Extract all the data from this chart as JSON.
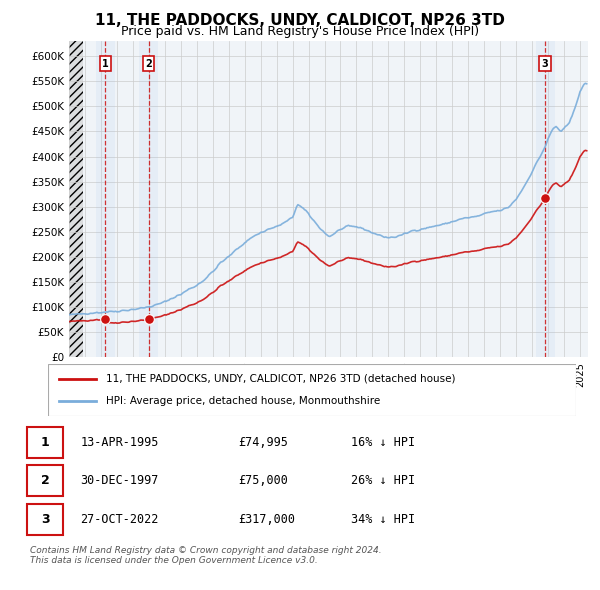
{
  "title": "11, THE PADDOCKS, UNDY, CALDICOT, NP26 3TD",
  "subtitle": "Price paid vs. HM Land Registry's House Price Index (HPI)",
  "title_fontsize": 11,
  "subtitle_fontsize": 9,
  "ylabel_ticks": [
    "£0",
    "£50K",
    "£100K",
    "£150K",
    "£200K",
    "£250K",
    "£300K",
    "£350K",
    "£400K",
    "£450K",
    "£500K",
    "£550K",
    "£600K"
  ],
  "ytick_values": [
    0,
    50000,
    100000,
    150000,
    200000,
    250000,
    300000,
    350000,
    400000,
    450000,
    500000,
    550000,
    600000
  ],
  "ylim": [
    0,
    630000
  ],
  "xlim_start": 1993.0,
  "xlim_end": 2025.5,
  "hpi_color": "#7aaddb",
  "price_color": "#cc1111",
  "sale_marker_color": "#cc1111",
  "vline_color": "#cc1111",
  "sale_marker_size": 7,
  "legend_label_price": "11, THE PADDOCKS, UNDY, CALDICOT, NP26 3TD (detached house)",
  "legend_label_hpi": "HPI: Average price, detached house, Monmouthshire",
  "table_rows": [
    {
      "num": "1",
      "date": "13-APR-1995",
      "price": "£74,995",
      "hpi": "16% ↓ HPI"
    },
    {
      "num": "2",
      "date": "30-DEC-1997",
      "price": "£75,000",
      "hpi": "26% ↓ HPI"
    },
    {
      "num": "3",
      "date": "27-OCT-2022",
      "price": "£317,000",
      "hpi": "34% ↓ HPI"
    }
  ],
  "footnote1": "Contains HM Land Registry data © Crown copyright and database right 2024.",
  "footnote2": "This data is licensed under the Open Government Licence v3.0.",
  "sales": [
    {
      "year": 1995.28,
      "price": 74995
    },
    {
      "year": 1997.99,
      "price": 75000
    },
    {
      "year": 2022.82,
      "price": 317000
    }
  ],
  "shade_alpha": 0.12
}
